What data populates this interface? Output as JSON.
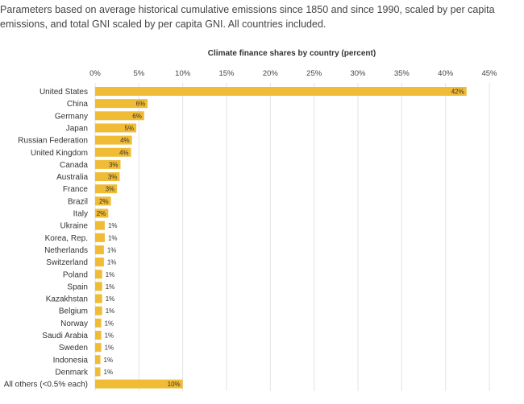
{
  "caption": "Parameters based on average historical cumulative emissions since 1850 and since 1990, scaled by per capita emissions, and total GNI scaled by per capita GNI. All countries included.",
  "chart_data": {
    "type": "bar",
    "orientation": "horizontal",
    "title": "Climate finance shares by country (percent)",
    "xlim": [
      0,
      45
    ],
    "xticks": [
      "0%",
      "5%",
      "10%",
      "15%",
      "20%",
      "25%",
      "30%",
      "35%",
      "40%",
      "45%"
    ],
    "categories": [
      "United States",
      "China",
      "Germany",
      "Japan",
      "Russian Federation",
      "United Kingdom",
      "Canada",
      "Australia",
      "France",
      "Brazil",
      "Italy",
      "Ukraine",
      "Korea, Rep.",
      "Netherlands",
      "Switzerland",
      "Poland",
      "Spain",
      "Kazakhstan",
      "Belgium",
      "Norway",
      "Saudi Arabia",
      "Sweden",
      "Indonesia",
      "Denmark",
      "All others (<0.5% each)"
    ],
    "values": [
      42.4,
      6.0,
      5.6,
      4.7,
      4.2,
      4.1,
      2.9,
      2.8,
      2.5,
      1.8,
      1.5,
      1.1,
      1.1,
      1.0,
      1.0,
      0.8,
      0.8,
      0.8,
      0.8,
      0.7,
      0.7,
      0.7,
      0.6,
      0.6,
      10.0
    ],
    "labels": [
      "42%",
      "6%",
      "6%",
      "5%",
      "4%",
      "4%",
      "3%",
      "3%",
      "3%",
      "2%",
      "2%",
      "1%",
      "1%",
      "1%",
      "1%",
      "1%",
      "1%",
      "1%",
      "1%",
      "1%",
      "1%",
      "1%",
      "1%",
      "1%",
      "10%"
    ],
    "bar_color": "#F0BC35",
    "grid": true
  }
}
